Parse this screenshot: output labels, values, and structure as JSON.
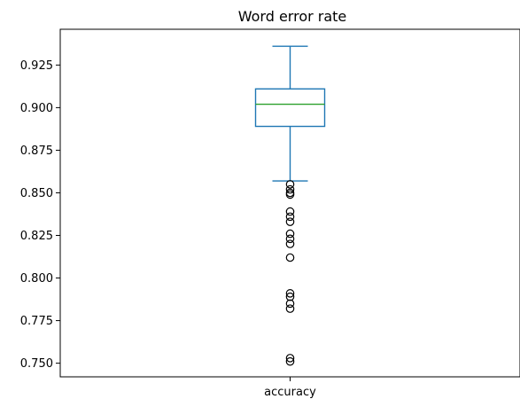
{
  "chart_data": {
    "type": "box",
    "title": "Word error rate",
    "xlabel": "",
    "ylabel": "",
    "categories": [
      "accuracy"
    ],
    "ylim": [
      0.742,
      0.946
    ],
    "yticks": [
      0.75,
      0.775,
      0.8,
      0.825,
      0.85,
      0.875,
      0.9,
      0.925
    ],
    "ytick_labels": [
      "0.750",
      "0.775",
      "0.800",
      "0.825",
      "0.850",
      "0.875",
      "0.900",
      "0.925"
    ],
    "grid": false,
    "series": [
      {
        "category": "accuracy",
        "whisker_low": 0.857,
        "q1": 0.889,
        "median": 0.902,
        "q3": 0.911,
        "whisker_high": 0.936,
        "outliers": [
          0.855,
          0.852,
          0.85,
          0.849,
          0.839,
          0.836,
          0.833,
          0.826,
          0.823,
          0.82,
          0.812,
          0.791,
          0.789,
          0.785,
          0.782,
          0.753,
          0.751
        ]
      }
    ],
    "colors": {
      "box": "#1f77b4",
      "median": "#2ca02c",
      "axis": "#000000",
      "outlier": "#000000"
    }
  }
}
